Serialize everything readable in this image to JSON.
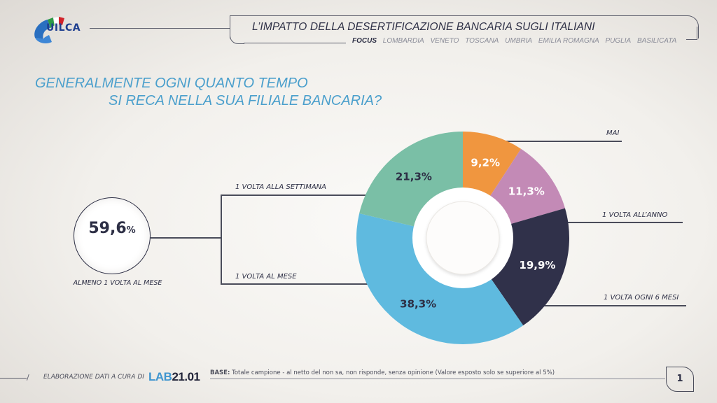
{
  "logo": {
    "text": "UILCA",
    "flag_colors": [
      "#2e9a47",
      "#ffffff",
      "#d2232a"
    ],
    "band_color": "#2a6fc0"
  },
  "header": {
    "title": "L’IMPATTO DELLA DESERTIFICAZIONE BANCARIA SUGLI ITALIANI",
    "focus_label": "FOCUS",
    "regions": [
      "LOMBARDIA",
      "VENETO",
      "TOSCANA",
      "UMBRIA",
      "EMILIA ROMAGNA",
      "PUGLIA",
      "BASILICATA"
    ]
  },
  "question": {
    "line1": "GENERALMENTE OGNI QUANTO TEMPO",
    "line2": "SI RECA NELLA SUA FILIALE BANCARIA?"
  },
  "summary": {
    "value": "59,6",
    "unit": "%",
    "caption": "ALMENO 1 VOLTA AL MESE"
  },
  "chart_data": {
    "type": "pie",
    "donut": true,
    "title": "GENERALMENTE OGNI QUANTO TEMPO SI RECA NELLA SUA FILIALE BANCARIA?",
    "categories": [
      "MAI",
      "1 VOLTA ALL’ANNO",
      "1 VOLTA OGNI 6 MESI",
      "1 VOLTA AL MESE",
      "1 VOLTA ALLA SETTIMANA"
    ],
    "values": [
      9.2,
      11.3,
      19.9,
      38.3,
      21.3
    ],
    "value_labels": [
      "9,2%",
      "11,3%",
      "19,9%",
      "38,3%",
      "21,3%"
    ],
    "colors": [
      "#f0963f",
      "#c38ab6",
      "#30314a",
      "#5fbadf",
      "#7abfa6"
    ],
    "label_text_colors": [
      "#ffffff",
      "#ffffff",
      "#ffffff",
      "#2d2f45",
      "#2d2f45"
    ],
    "start": "top",
    "direction": "clockwise",
    "unit": "%"
  },
  "footer": {
    "elaboration": "ELABORAZIONE DATI A CURA DI",
    "lab_part1": "LAB",
    "lab_part2": "21.01",
    "base_label": "BASE:",
    "base_text": " Totale campione - al netto del non sa, non risponde, senza opinione (Valore esposto solo se superiore al 5%)",
    "page_number": "1"
  }
}
